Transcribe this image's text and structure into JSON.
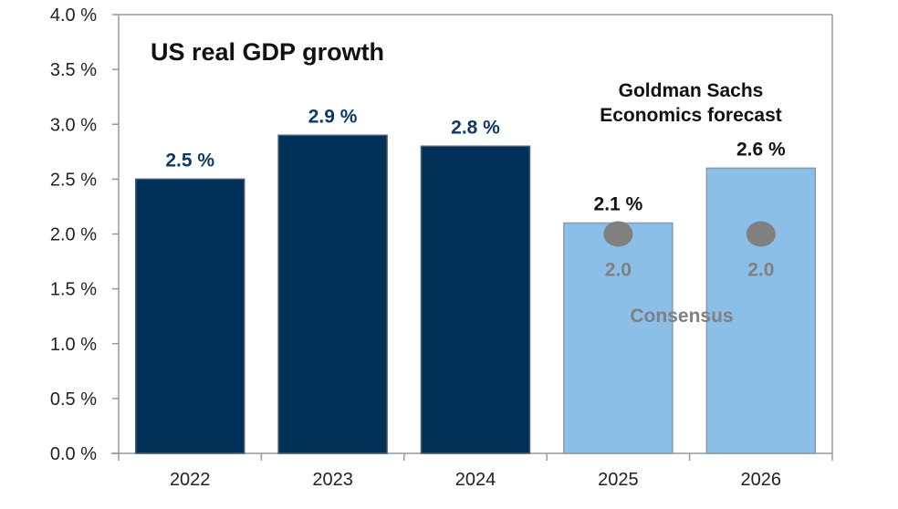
{
  "chart_data": {
    "type": "bar",
    "title": "US real GDP growth",
    "categories": [
      "2022",
      "2023",
      "2024",
      "2025",
      "2026"
    ],
    "values": [
      2.5,
      2.9,
      2.8,
      2.1,
      2.6
    ],
    "value_labels": [
      "2.5 %",
      "2.9 %",
      "2.8 %",
      "2.1 %",
      "2.6 %"
    ],
    "forecast": [
      false,
      false,
      false,
      true,
      true
    ],
    "forecast_label_lines": [
      "Goldman Sachs",
      "Economics forecast"
    ],
    "consensus": {
      "label": "Consensus",
      "values": [
        null,
        null,
        null,
        2.0,
        2.0
      ],
      "value_labels": [
        "",
        "",
        "",
        "2.0",
        "2.0"
      ]
    },
    "ylim": [
      0,
      4.0
    ],
    "yticks": [
      0,
      0.5,
      1.0,
      1.5,
      2.0,
      2.5,
      3.0,
      3.5,
      4.0
    ],
    "ytick_labels": [
      "0.0 %",
      "0.5 %",
      "1.0 %",
      "1.5 %",
      "2.0 %",
      "2.5 %",
      "3.0 %",
      "3.5 %",
      "4.0 %"
    ],
    "xlabel": "",
    "ylabel": "",
    "grid": false,
    "colors": {
      "actual": "#003159",
      "forecast": "#8bbfe8",
      "consensus_dot": "#808080",
      "actual_label": "#0d3a66",
      "forecast_label": "#111111"
    }
  }
}
